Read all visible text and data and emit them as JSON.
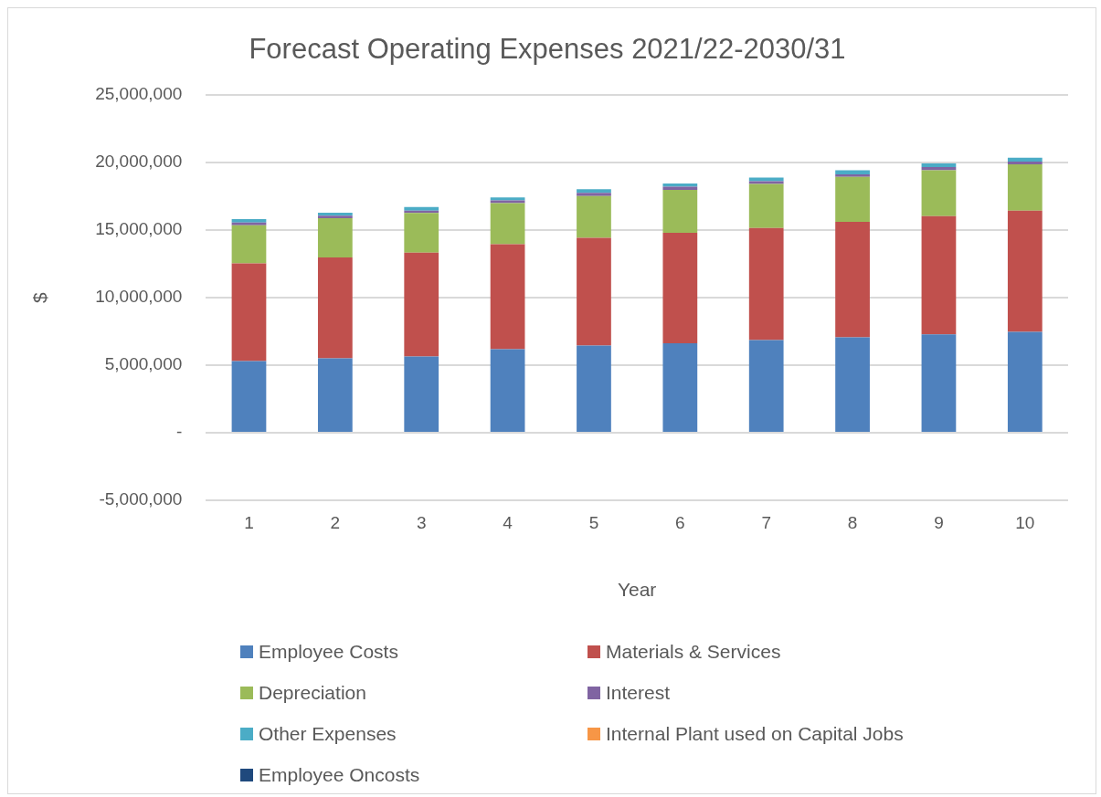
{
  "chart_data": {
    "type": "bar",
    "title": "Forecast Operating Expenses 2021/22-2030/31",
    "xlabel": "Year",
    "ylabel": "$",
    "categories": [
      "1",
      "2",
      "3",
      "4",
      "5",
      "6",
      "7",
      "8",
      "9",
      "10"
    ],
    "stacked": true,
    "series": [
      {
        "name": "Employee Costs",
        "color": "#4f81bd",
        "values": [
          5310000,
          5510000,
          5650000,
          6180000,
          6450000,
          6630000,
          6860000,
          7060000,
          7290000,
          7470000
        ]
      },
      {
        "name": "Materials & Services",
        "color": "#c0504d",
        "values": [
          7240000,
          7470000,
          7680000,
          7780000,
          7980000,
          8170000,
          8300000,
          8550000,
          8750000,
          8980000
        ]
      },
      {
        "name": "Depreciation",
        "color": "#9bbb59",
        "values": [
          2820000,
          2900000,
          2940000,
          3040000,
          3100000,
          3180000,
          3270000,
          3330000,
          3390000,
          3430000
        ]
      },
      {
        "name": "Interest",
        "color": "#8064a2",
        "values": [
          200000,
          200000,
          180000,
          200000,
          230000,
          240000,
          200000,
          200000,
          240000,
          200000
        ]
      },
      {
        "name": "Other Expenses",
        "color": "#4bacc6",
        "values": [
          250000,
          210000,
          260000,
          230000,
          280000,
          230000,
          270000,
          290000,
          270000,
          290000
        ]
      },
      {
        "name": "Internal Plant used on Capital Jobs",
        "color": "#f79646",
        "values": [
          0,
          0,
          0,
          0,
          0,
          0,
          0,
          0,
          0,
          0
        ]
      },
      {
        "name": "Employee Oncosts",
        "color": "#1f497d",
        "values": [
          0,
          0,
          0,
          0,
          0,
          0,
          0,
          0,
          0,
          0
        ]
      }
    ],
    "ylim": [
      -5000000,
      25000000
    ],
    "yticks": [
      {
        "value": -5000000,
        "label": "-5,000,000"
      },
      {
        "value": 0,
        "label": "-"
      },
      {
        "value": 5000000,
        "label": "5,000,000"
      },
      {
        "value": 10000000,
        "label": "10,000,000"
      },
      {
        "value": 15000000,
        "label": "15,000,000"
      },
      {
        "value": 20000000,
        "label": "20,000,000"
      },
      {
        "value": 25000000,
        "label": "25,000,000"
      }
    ],
    "grid": "y",
    "legend": "bottom"
  }
}
